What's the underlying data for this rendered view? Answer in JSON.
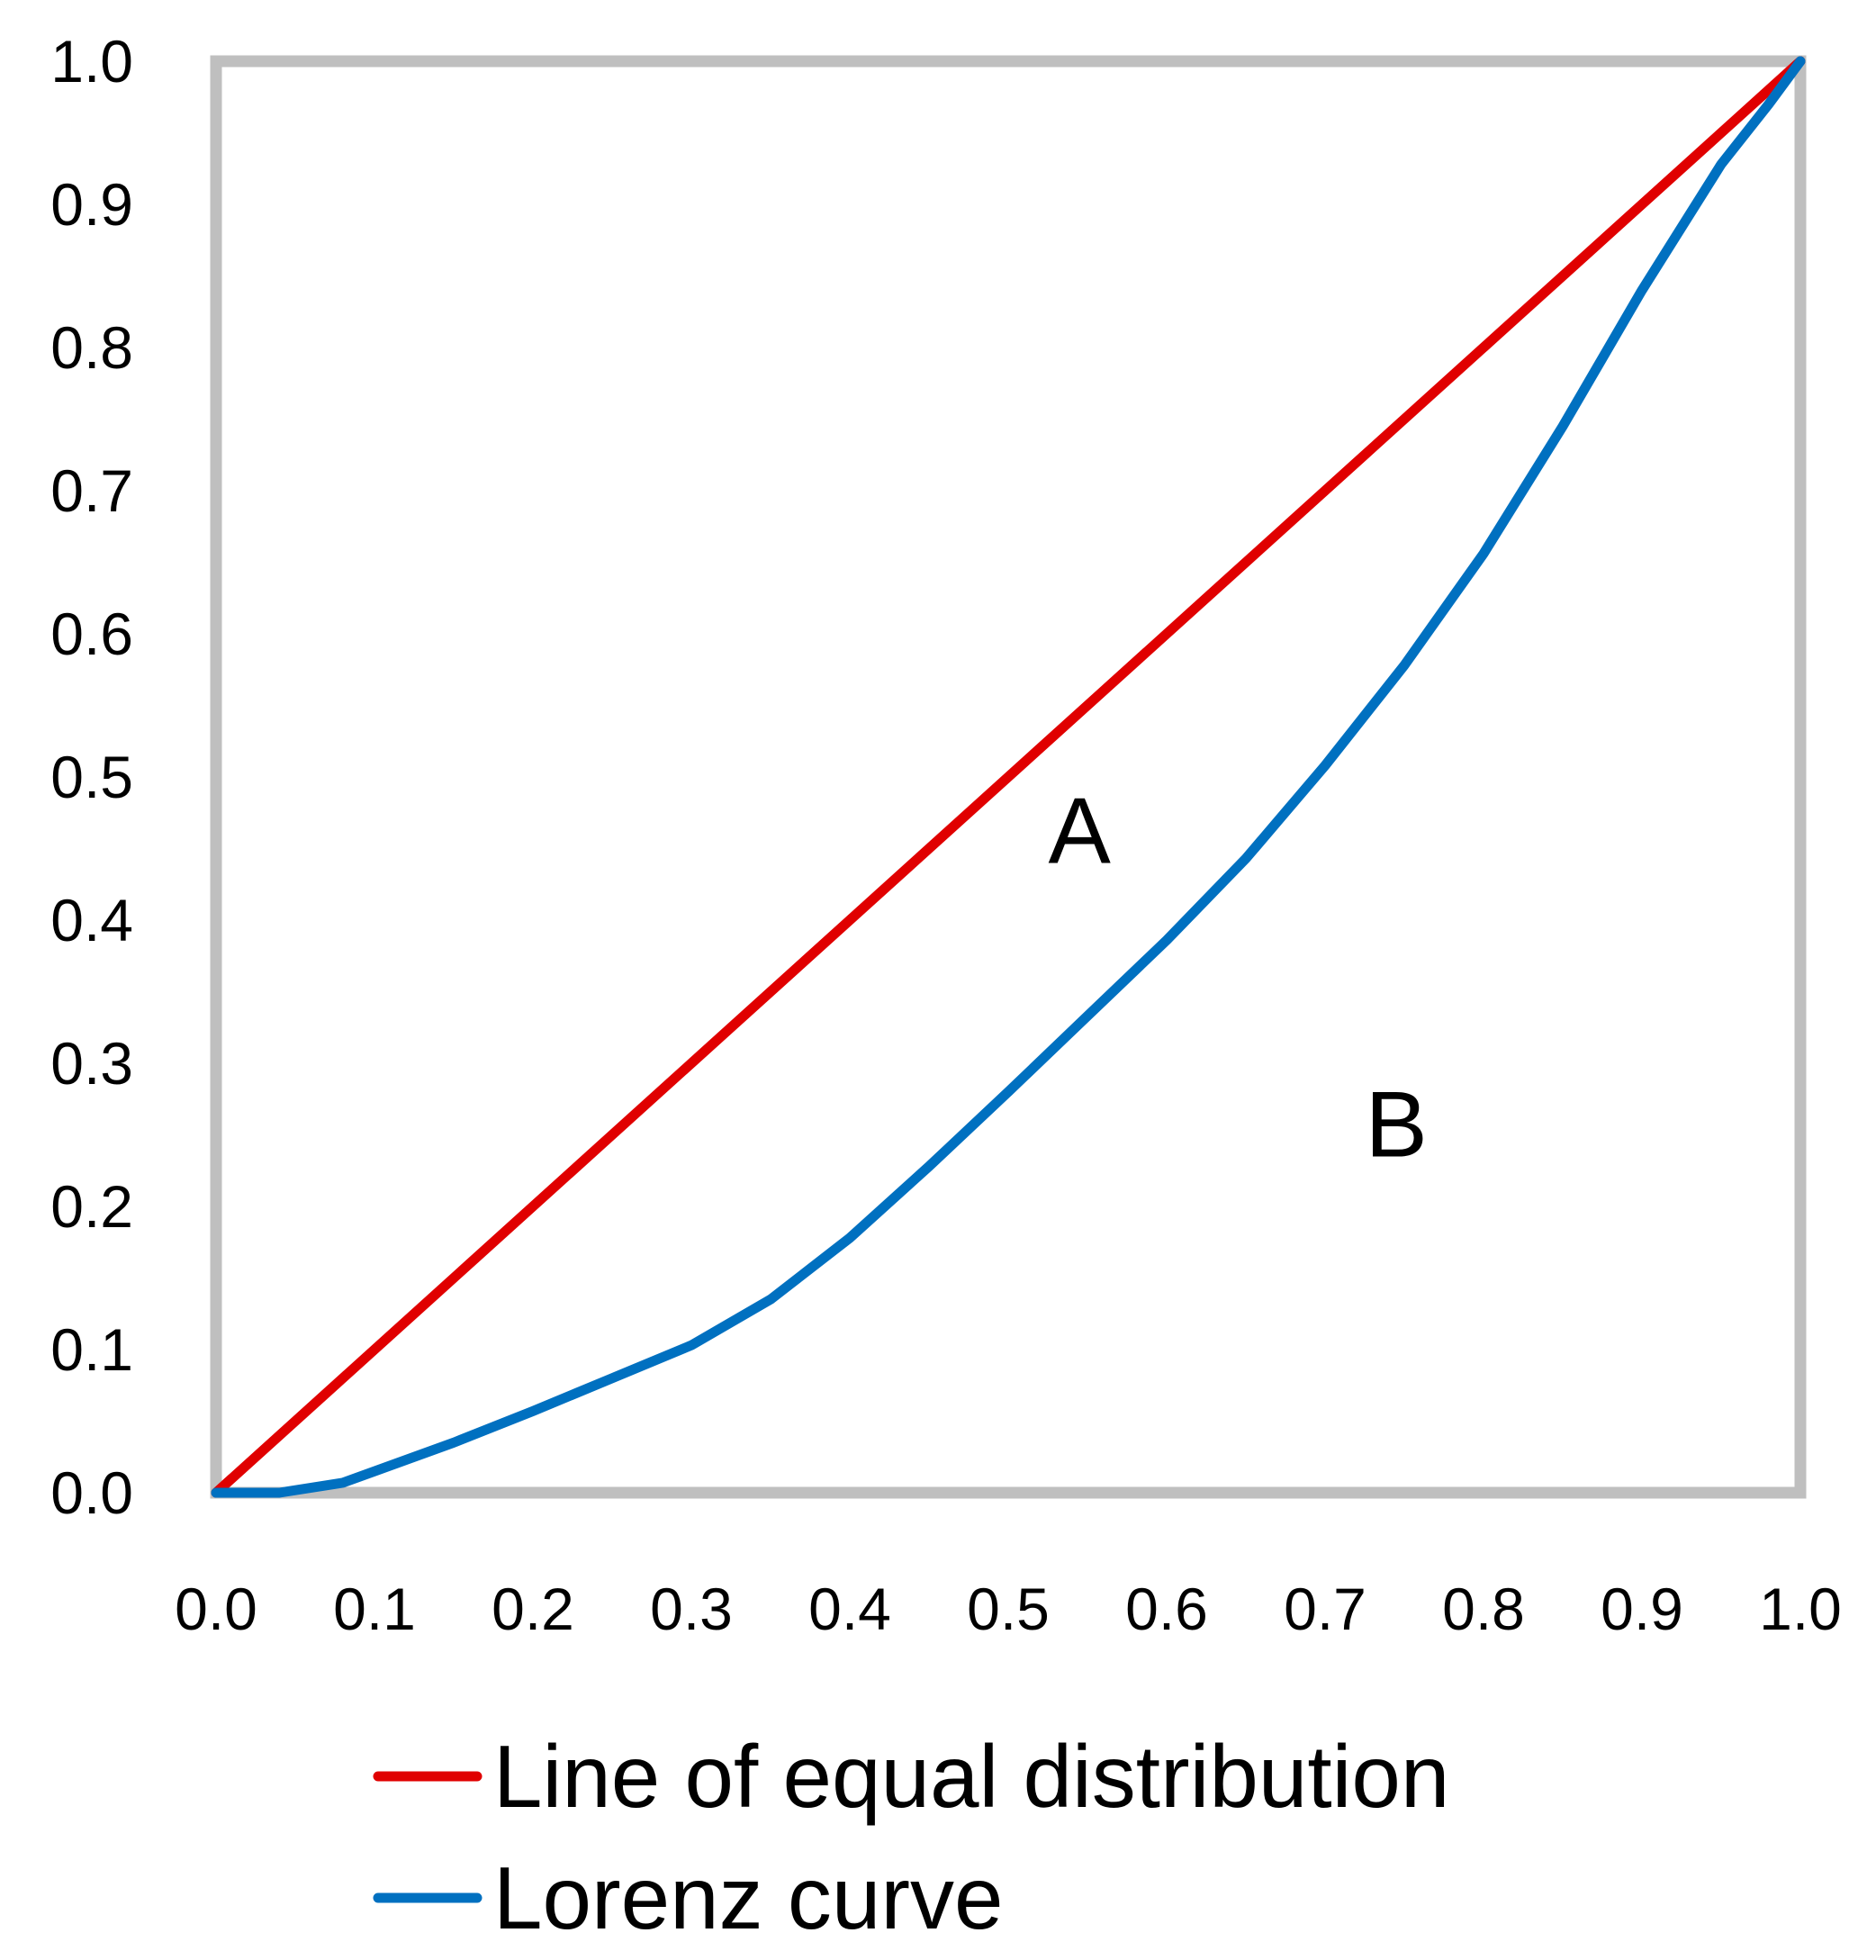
{
  "chart_data": {
    "type": "line",
    "title": "",
    "xlabel": "",
    "ylabel": "",
    "xlim": [
      0,
      1
    ],
    "ylim": [
      0,
      1
    ],
    "x_ticks": [
      "0.0",
      "0.1",
      "0.2",
      "0.3",
      "0.4",
      "0.5",
      "0.6",
      "0.7",
      "0.8",
      "0.9",
      "1.0"
    ],
    "y_ticks": [
      "0.0",
      "0.1",
      "0.2",
      "0.3",
      "0.4",
      "0.5",
      "0.6",
      "0.7",
      "0.8",
      "0.9",
      "1.0"
    ],
    "grid": false,
    "legend_position": "bottom",
    "series": [
      {
        "name": "Line of equal distribution",
        "color": "#e00000",
        "points": [
          [
            0,
            0
          ],
          [
            1,
            1
          ]
        ]
      },
      {
        "name": "Lorenz curve",
        "color": "#0070c0",
        "points": [
          [
            0.0,
            0.0
          ],
          [
            0.04,
            0.0
          ],
          [
            0.08,
            0.007
          ],
          [
            0.1,
            0.015
          ],
          [
            0.15,
            0.035
          ],
          [
            0.2,
            0.057
          ],
          [
            0.25,
            0.08
          ],
          [
            0.3,
            0.103
          ],
          [
            0.35,
            0.135
          ],
          [
            0.4,
            0.178
          ],
          [
            0.45,
            0.228
          ],
          [
            0.5,
            0.28
          ],
          [
            0.55,
            0.333
          ],
          [
            0.6,
            0.386
          ],
          [
            0.65,
            0.443
          ],
          [
            0.7,
            0.508
          ],
          [
            0.75,
            0.578
          ],
          [
            0.8,
            0.656
          ],
          [
            0.85,
            0.745
          ],
          [
            0.9,
            0.84
          ],
          [
            0.95,
            0.928
          ],
          [
            0.98,
            0.97
          ],
          [
            1.0,
            1.0
          ]
        ]
      }
    ],
    "annotations": [
      {
        "text": "A",
        "x": 0.545,
        "y": 0.44
      },
      {
        "text": "B",
        "x": 0.745,
        "y": 0.235
      }
    ]
  }
}
